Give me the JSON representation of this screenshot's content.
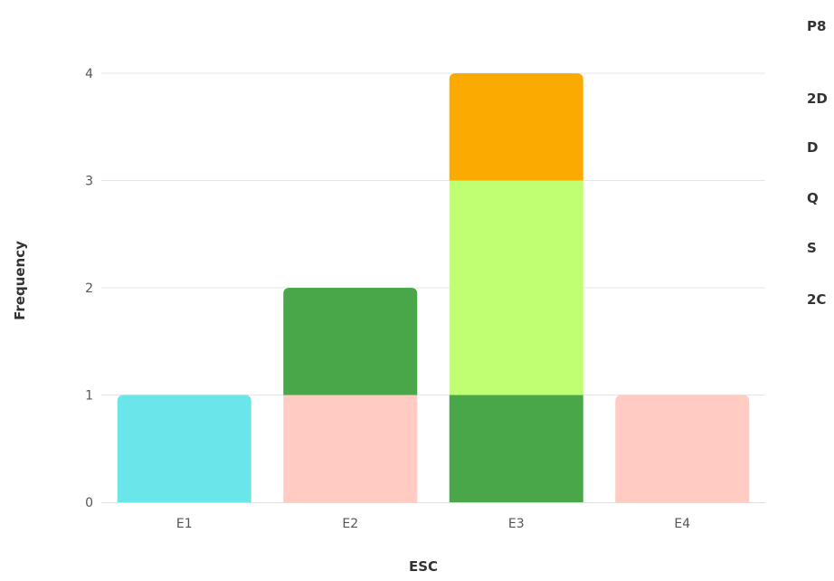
{
  "chart_data": {
    "type": "bar",
    "stacked": true,
    "categories": [
      "E1",
      "E2",
      "E3",
      "E4"
    ],
    "xlabel": "ESC",
    "ylabel": "Frequency",
    "ylim": [
      0,
      4
    ],
    "yticks": [
      0,
      1,
      2,
      3,
      4
    ],
    "grid": true,
    "legend_position": "right",
    "series": [
      {
        "name": "P8",
        "color": "#ffffff",
        "values": [
          0,
          0,
          0,
          0
        ]
      },
      {
        "name": "2D",
        "color": "#6ae6ea",
        "values": [
          1,
          0,
          0,
          0
        ]
      },
      {
        "name": "D",
        "color": "#ffcbc3",
        "values": [
          0,
          1,
          0,
          1
        ]
      },
      {
        "name": "Q",
        "color": "#49a74a",
        "values": [
          0,
          1,
          1,
          0
        ]
      },
      {
        "name": "S",
        "color": "#c1ff72",
        "values": [
          0,
          0,
          2,
          0
        ]
      },
      {
        "name": "2C",
        "color": "#faaa00",
        "values": [
          0,
          0,
          1,
          0
        ]
      }
    ]
  }
}
